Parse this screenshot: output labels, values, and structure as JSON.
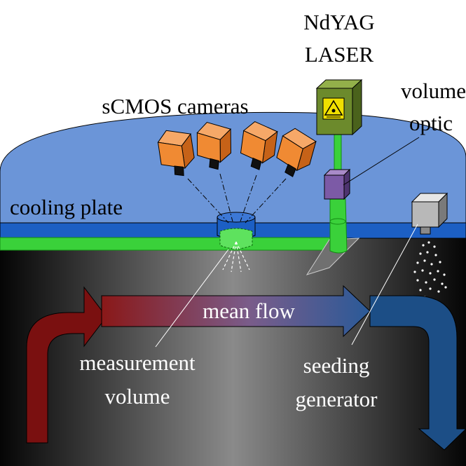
{
  "labels": {
    "laser_line1": "NdYAG",
    "laser_line2": "LASER",
    "cameras": "sCMOS cameras",
    "volume_optic_line1": "volume",
    "volume_optic_line2": "optic",
    "cooling_plate": "cooling plate",
    "mean_flow": "mean flow",
    "measurement_line1": "measurement",
    "measurement_line2": "volume",
    "seeding_line1": "seeding",
    "seeding_line2": "generator"
  },
  "colors": {
    "dome": "#6b95d8",
    "cooling_plate": "#1c5fc4",
    "laser_beam": "#3ad13a",
    "camera": "#f08a33",
    "laser_housing": "#6c8a2c",
    "volume_optic": "#7c5aa6",
    "seeding_generator": "#b8b8b8",
    "flow_inlet": "#7a1010",
    "flow_outlet": "#1c4e86"
  },
  "icons": {
    "laser_warning": "laser-warning-icon"
  }
}
